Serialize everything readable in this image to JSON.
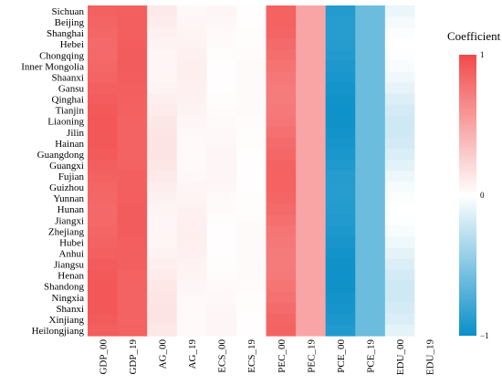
{
  "chart_data": {
    "type": "heatmap",
    "title": "",
    "xlabel": "",
    "ylabel": "",
    "rows": [
      "Sichuan",
      "Beijing",
      "Shanghai",
      "Hebei",
      "Chongqing",
      "Inner Mongolia",
      "Shaanxi",
      "Gansu",
      "Qinghai",
      "Tianjin",
      "Liaoning",
      "Jilin",
      "Hainan",
      "Guangdong",
      "Guangxi",
      "Fujian",
      "Guizhou",
      "Yunnan",
      "Hunan",
      "Jiangxi",
      "Zhejiang",
      "Hubei",
      "Anhui",
      "Jiangsu",
      "Henan",
      "Shandong",
      "Ningxia",
      "Shanxi",
      "Xinjiang",
      "Heilongjiang"
    ],
    "columns": [
      "GDP_00",
      "GDP_19",
      "AG_00",
      "AG_19",
      "ECS_00",
      "ECS_19",
      "PEC_00",
      "PEC_19",
      "PCE_00",
      "PCE_19",
      "EDU_00",
      "EDU_19"
    ],
    "column_base": [
      0.88,
      0.88,
      0.1,
      0.06,
      0.03,
      0.02,
      0.8,
      0.5,
      -0.93,
      -0.6,
      -0.1,
      0.0
    ],
    "column_noise": [
      0.05,
      0.02,
      0.05,
      0.03,
      0.02,
      0.01,
      0.07,
      0.0,
      0.05,
      0.0,
      0.1,
      0.0
    ],
    "color_scale": {
      "min": -1,
      "mid": 0,
      "max": 1,
      "low_color": "#0a8fc8",
      "mid_color": "#ffffff",
      "high_color": "#f24a4a"
    },
    "legend": {
      "title": "Coefficient",
      "ticks": [
        "1",
        "0",
        "−1"
      ],
      "position": "right"
    }
  }
}
